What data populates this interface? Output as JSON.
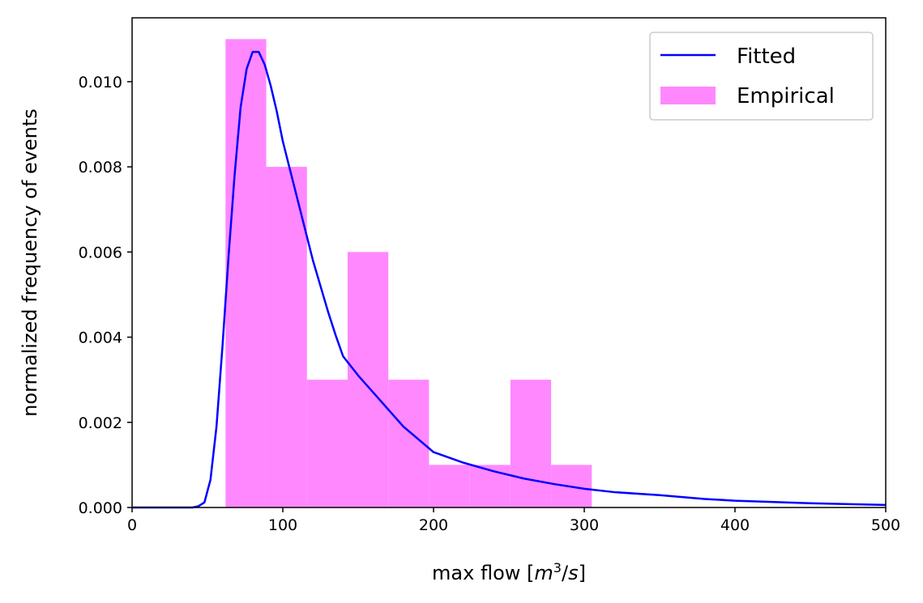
{
  "chart_data": {
    "type": "bar",
    "xlabel": "max flow [m³/s]",
    "xlabel_parts": {
      "prefix": "max flow [",
      "var": "m",
      "sup": "3",
      "slash": "/",
      "var2": "s",
      "suffix": "]"
    },
    "ylabel": "normalized frequency of events",
    "xlim": [
      0,
      500
    ],
    "ylim": [
      0,
      0.0115
    ],
    "x_ticks": [
      0,
      100,
      200,
      300,
      400,
      500
    ],
    "x_tick_labels": [
      "0",
      "100",
      "200",
      "300",
      "400",
      "500"
    ],
    "y_ticks": [
      0,
      0.002,
      0.004,
      0.006,
      0.008,
      0.01
    ],
    "y_tick_labels": [
      "0.000",
      "0.002",
      "0.004",
      "0.006",
      "0.008",
      "0.010"
    ],
    "grid": false,
    "legend_position": "top-right",
    "series": [
      {
        "name": "Fitted",
        "kind": "line",
        "color": "#0000ff",
        "x": [
          0,
          40,
          44,
          48,
          52,
          56,
          60,
          64,
          68,
          72,
          76,
          80,
          84,
          88,
          92,
          96,
          100,
          105,
          110,
          115,
          120,
          125,
          130,
          135,
          140,
          150,
          160,
          170,
          180,
          190,
          200,
          220,
          240,
          260,
          280,
          300,
          320,
          350,
          380,
          400,
          450,
          500
        ],
        "y": [
          0,
          0,
          3e-05,
          0.00012,
          0.00065,
          0.0019,
          0.0038,
          0.0059,
          0.0078,
          0.0094,
          0.0103,
          0.0107,
          0.0107,
          0.0104,
          0.0099,
          0.0093,
          0.0086,
          0.0079,
          0.0072,
          0.0065,
          0.0058,
          0.0052,
          0.0046,
          0.00405,
          0.00355,
          0.0031,
          0.0027,
          0.0023,
          0.0019,
          0.0016,
          0.0013,
          0.00105,
          0.00085,
          0.00068,
          0.00055,
          0.00044,
          0.00036,
          0.00029,
          0.0002,
          0.00016,
          0.0001,
          6e-05
        ]
      },
      {
        "name": "Empirical",
        "kind": "histogram",
        "color": "#ff88ff",
        "bin_edges": [
          62,
          89,
          116,
          143,
          170,
          197,
          224,
          251,
          278,
          305
        ],
        "values": [
          0.011,
          0.008,
          0.003,
          0.006,
          0.003,
          0.001,
          0.001,
          0.003,
          0.001
        ]
      }
    ]
  }
}
